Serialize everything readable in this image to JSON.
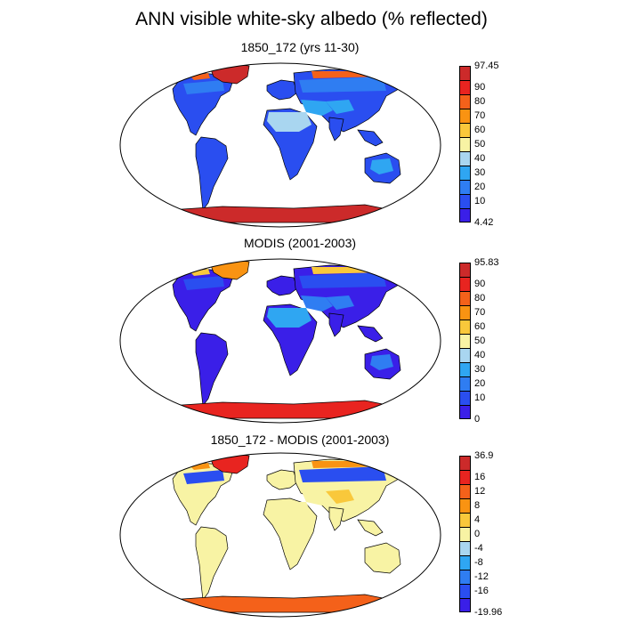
{
  "title": "ANN visible white-sky albedo (% reflected)",
  "colors": {
    "albedo": [
      "#3a1fe8",
      "#2a4ef0",
      "#2f7df2",
      "#2fa6f2",
      "#a9d6f0",
      "#f8f3a4",
      "#f9c83b",
      "#f99312",
      "#f4611a",
      "#e82420",
      "#cc2a2a"
    ],
    "diff": [
      "#3a1fe8",
      "#2a4ef0",
      "#2f7df2",
      "#2fa6f2",
      "#a9d6f0",
      "#f8f3a4",
      "#f9c83b",
      "#f99312",
      "#f4611a",
      "#e82420",
      "#cc2a2a"
    ],
    "ocean": "#ffffff",
    "coast": "#000000"
  },
  "panels": [
    {
      "title": "1850_172 (yrs 11-30)",
      "colorbar_labels": [
        "97.45",
        "90",
        "80",
        "70",
        "60",
        "50",
        "40",
        "30",
        "20",
        "10",
        "4.42"
      ],
      "fills": {
        "land": 1,
        "desert": 3,
        "sahara": 4,
        "boreal": 2,
        "greenland": 10,
        "arctic": 8,
        "tibet": 3,
        "antarctica": 10
      }
    },
    {
      "title": "MODIS (2001-2003)",
      "colorbar_labels": [
        "95.83",
        "90",
        "80",
        "70",
        "60",
        "50",
        "40",
        "30",
        "20",
        "10",
        "0"
      ],
      "fills": {
        "land": 0,
        "desert": 2,
        "sahara": 3,
        "boreal": 1,
        "greenland": 7,
        "arctic": 6,
        "tibet": 2,
        "antarctica": 9
      }
    },
    {
      "title": "1850_172 - MODIS (2001-2003)",
      "colorbar_labels": [
        "36.9",
        "16",
        "12",
        "8",
        "4",
        "0",
        "-4",
        "-8",
        "-12",
        "-16",
        "-19.96"
      ],
      "fills": {
        "land": 5,
        "desert": 5,
        "sahara": 5,
        "boreal": 1,
        "greenland": 9,
        "arctic": 7,
        "tibet": 6,
        "antarctica": 8
      }
    }
  ]
}
